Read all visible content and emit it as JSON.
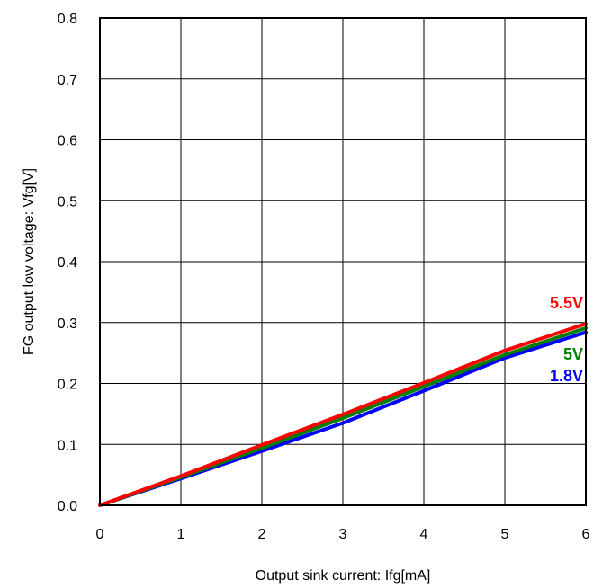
{
  "chart_data": {
    "type": "line",
    "title": "",
    "xlabel": "Output sink current: Ifg[mA]",
    "ylabel": "FG output low voltage: Vfg[V]",
    "xlim": [
      0,
      6
    ],
    "ylim": [
      0.0,
      0.8
    ],
    "x_ticks": [
      "0",
      "1",
      "2",
      "3",
      "4",
      "5",
      "6"
    ],
    "y_ticks": [
      "0.0",
      "0.1",
      "0.2",
      "0.3",
      "0.4",
      "0.5",
      "0.6",
      "0.7",
      "0.8"
    ],
    "grid": true,
    "legend": "labels at line ends",
    "series": [
      {
        "name": "1.8V",
        "color": "#0000ff",
        "x": [
          0,
          1,
          2,
          3,
          4,
          5,
          6
        ],
        "y": [
          0.0,
          0.044,
          0.089,
          0.135,
          0.188,
          0.242,
          0.284
        ]
      },
      {
        "name": "5V",
        "color": "#008000",
        "x": [
          0,
          1,
          2,
          3,
          4,
          5,
          6
        ],
        "y": [
          0.0,
          0.046,
          0.094,
          0.143,
          0.195,
          0.247,
          0.291
        ]
      },
      {
        "name": "5.5V",
        "color": "#ff0000",
        "x": [
          0,
          1,
          2,
          3,
          4,
          5,
          6
        ],
        "y": [
          0.0,
          0.048,
          0.099,
          0.149,
          0.201,
          0.254,
          0.298
        ]
      }
    ]
  }
}
